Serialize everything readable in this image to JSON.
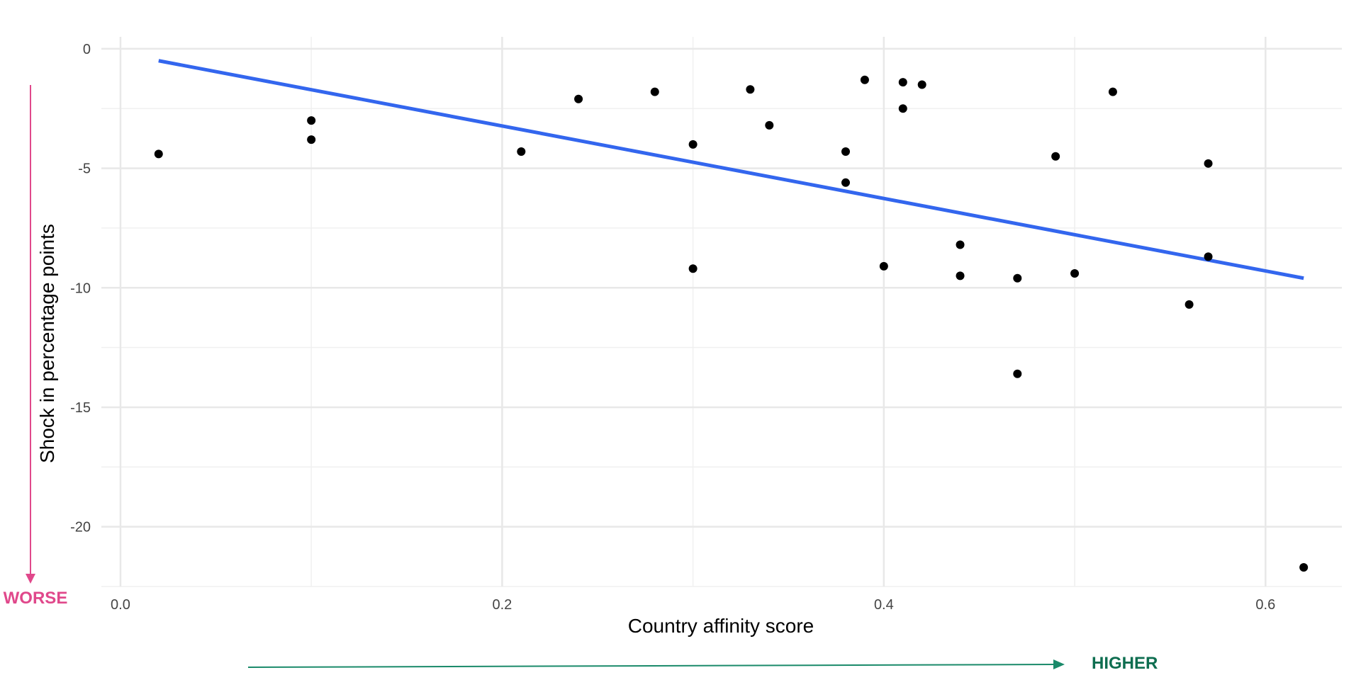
{
  "chart_data": {
    "type": "scatter",
    "xlabel": "Country affinity score",
    "ylabel": "Shock in percentage points",
    "xlim": [
      -0.01,
      0.64
    ],
    "ylim": [
      -22.5,
      0.5
    ],
    "x_ticks": [
      0.0,
      0.2,
      0.4,
      0.6
    ],
    "x_tick_labels": [
      "0.0",
      "0.2",
      "0.4",
      "0.6"
    ],
    "y_ticks": [
      0,
      -5,
      -10,
      -15,
      -20
    ],
    "y_tick_labels": [
      "0",
      "-5",
      "-10",
      "-15",
      "-20"
    ],
    "grid": true,
    "points": [
      {
        "x": 0.02,
        "y": -4.4
      },
      {
        "x": 0.1,
        "y": -3.0
      },
      {
        "x": 0.1,
        "y": -3.8
      },
      {
        "x": 0.21,
        "y": -4.3
      },
      {
        "x": 0.24,
        "y": -2.1
      },
      {
        "x": 0.28,
        "y": -1.8
      },
      {
        "x": 0.3,
        "y": -4.0
      },
      {
        "x": 0.3,
        "y": -9.2
      },
      {
        "x": 0.33,
        "y": -1.7
      },
      {
        "x": 0.34,
        "y": -3.2
      },
      {
        "x": 0.38,
        "y": -4.3
      },
      {
        "x": 0.38,
        "y": -5.6
      },
      {
        "x": 0.39,
        "y": -1.3
      },
      {
        "x": 0.4,
        "y": -9.1
      },
      {
        "x": 0.41,
        "y": -1.4
      },
      {
        "x": 0.41,
        "y": -2.5
      },
      {
        "x": 0.42,
        "y": -1.5
      },
      {
        "x": 0.44,
        "y": -8.2
      },
      {
        "x": 0.44,
        "y": -9.5
      },
      {
        "x": 0.47,
        "y": -9.6
      },
      {
        "x": 0.47,
        "y": -13.6
      },
      {
        "x": 0.49,
        "y": -4.5
      },
      {
        "x": 0.5,
        "y": -9.4
      },
      {
        "x": 0.52,
        "y": -1.8
      },
      {
        "x": 0.56,
        "y": -10.7
      },
      {
        "x": 0.57,
        "y": -4.8
      },
      {
        "x": 0.57,
        "y": -8.7
      },
      {
        "x": 0.62,
        "y": -21.7
      }
    ],
    "trend_line": {
      "x": [
        0.02,
        0.62
      ],
      "y": [
        -0.5,
        -9.6
      ]
    },
    "colors": {
      "points": "#000000",
      "trend_line": "#3366ee",
      "grid": "#e8e8e8"
    }
  },
  "annotations": {
    "worse": {
      "text": "WORSE",
      "color": "#e0488b"
    },
    "higher": {
      "text": "HIGHER",
      "color": "#0e6e50"
    },
    "arrow_down_color": "#e0488b",
    "arrow_right_color": "#1a8a6a"
  }
}
